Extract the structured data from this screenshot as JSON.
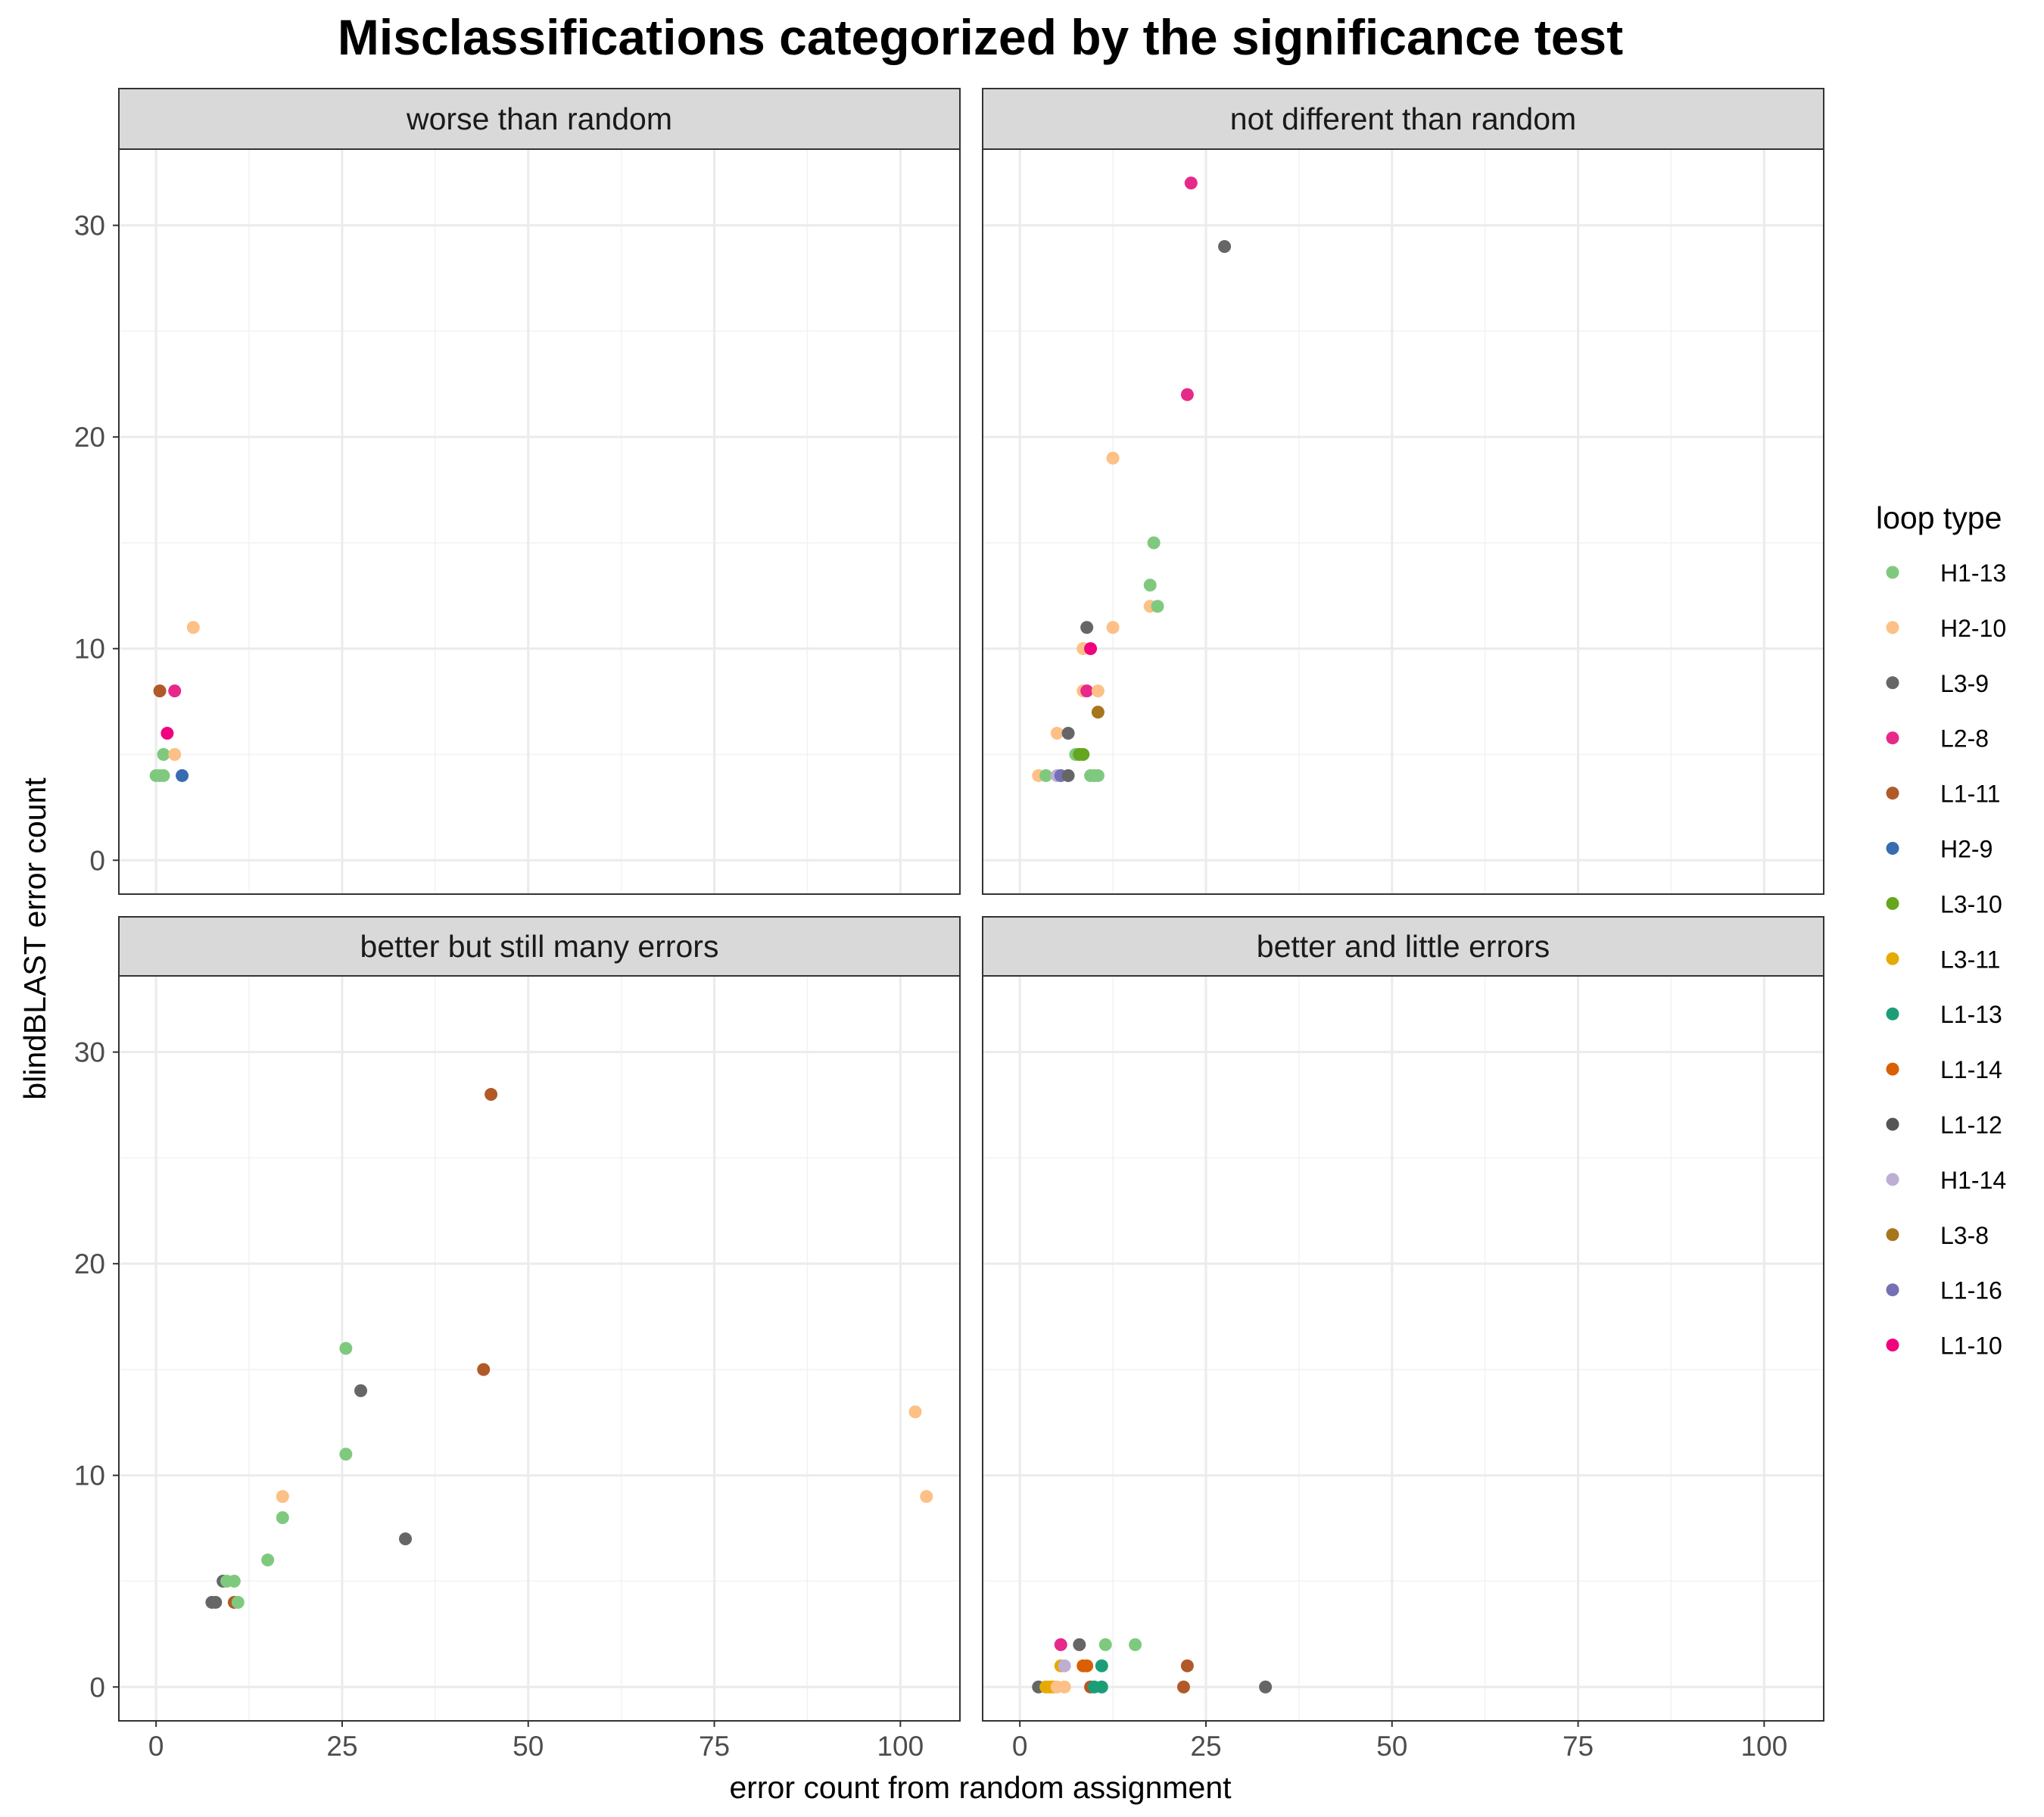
{
  "chart_data": {
    "type": "scatter",
    "title": "Misclassifications categorized by the significance test",
    "xlabel": "error count from random assignment",
    "ylabel": "blindBLAST error count",
    "xlim": [
      -5,
      108
    ],
    "ylim": [
      -1.6,
      33.6
    ],
    "xticks": [
      0,
      25,
      50,
      75,
      100
    ],
    "yticks": [
      0,
      10,
      20,
      30
    ],
    "grid": true,
    "legend": {
      "title": "loop type",
      "position": "right",
      "entries": [
        {
          "name": "H1-13",
          "color": "#7FC97F"
        },
        {
          "name": "H2-10",
          "color": "#FDC086"
        },
        {
          "name": "L3-9",
          "color": "#666666"
        },
        {
          "name": "L2-8",
          "color": "#E7298A"
        },
        {
          "name": "L1-11",
          "color": "#B15928"
        },
        {
          "name": "H2-9",
          "color": "#386CB0"
        },
        {
          "name": "L3-10",
          "color": "#66A61E"
        },
        {
          "name": "L3-11",
          "color": "#E6AB02"
        },
        {
          "name": "L1-13",
          "color": "#1B9E77"
        },
        {
          "name": "L1-14",
          "color": "#D95F02"
        },
        {
          "name": "L1-12",
          "color": "#555555"
        },
        {
          "name": "H1-14",
          "color": "#BEAED4"
        },
        {
          "name": "L3-8",
          "color": "#A6761D"
        },
        {
          "name": "L1-16",
          "color": "#7570B3"
        },
        {
          "name": "L1-10",
          "color": "#F0027F"
        }
      ]
    },
    "panels": [
      {
        "label": "worse than random",
        "points": [
          {
            "x": 5,
            "y": 11,
            "series": "H2-10"
          },
          {
            "x": 0.5,
            "y": 8,
            "series": "L1-11"
          },
          {
            "x": 2.5,
            "y": 8,
            "series": "L2-8"
          },
          {
            "x": 1.5,
            "y": 6,
            "series": "L1-10"
          },
          {
            "x": 1,
            "y": 5,
            "series": "H1-13"
          },
          {
            "x": 2.5,
            "y": 5,
            "series": "H2-10"
          },
          {
            "x": 0,
            "y": 4,
            "series": "H1-13"
          },
          {
            "x": 0.5,
            "y": 4,
            "series": "H1-13"
          },
          {
            "x": 1,
            "y": 4,
            "series": "H1-13"
          },
          {
            "x": 3.5,
            "y": 4,
            "series": "H2-9"
          }
        ]
      },
      {
        "label": "not different than random",
        "points": [
          {
            "x": 23,
            "y": 32,
            "series": "L2-8"
          },
          {
            "x": 27.5,
            "y": 29,
            "series": "L3-9"
          },
          {
            "x": 22.5,
            "y": 22,
            "series": "L2-8"
          },
          {
            "x": 12.5,
            "y": 19,
            "series": "H2-10"
          },
          {
            "x": 18,
            "y": 15,
            "series": "H1-13"
          },
          {
            "x": 17.5,
            "y": 13,
            "series": "H1-13"
          },
          {
            "x": 17.5,
            "y": 12,
            "series": "H2-10"
          },
          {
            "x": 18.5,
            "y": 12,
            "series": "H1-13"
          },
          {
            "x": 9,
            "y": 11,
            "series": "L3-9"
          },
          {
            "x": 12.5,
            "y": 11,
            "series": "H2-10"
          },
          {
            "x": 8.5,
            "y": 10,
            "series": "H2-10"
          },
          {
            "x": 9.5,
            "y": 10,
            "series": "L1-10"
          },
          {
            "x": 8.5,
            "y": 8,
            "series": "H2-10"
          },
          {
            "x": 9,
            "y": 8,
            "series": "L2-8"
          },
          {
            "x": 10.5,
            "y": 8,
            "series": "H2-10"
          },
          {
            "x": 10.5,
            "y": 7,
            "series": "L3-8"
          },
          {
            "x": 5,
            "y": 6,
            "series": "H2-10"
          },
          {
            "x": 6.5,
            "y": 6,
            "series": "L3-9"
          },
          {
            "x": 7.5,
            "y": 5,
            "series": "H1-13"
          },
          {
            "x": 8,
            "y": 5,
            "series": "L3-10"
          },
          {
            "x": 8.5,
            "y": 5,
            "series": "L3-10"
          },
          {
            "x": 2.5,
            "y": 4,
            "series": "H2-10"
          },
          {
            "x": 3.5,
            "y": 4,
            "series": "H1-13"
          },
          {
            "x": 5,
            "y": 4,
            "series": "H1-14"
          },
          {
            "x": 5.5,
            "y": 4,
            "series": "L1-16"
          },
          {
            "x": 6.5,
            "y": 4,
            "series": "L3-9"
          },
          {
            "x": 9.5,
            "y": 4,
            "series": "H1-13"
          },
          {
            "x": 10,
            "y": 4,
            "series": "H1-13"
          },
          {
            "x": 10.5,
            "y": 4,
            "series": "H1-13"
          }
        ]
      },
      {
        "label": "better but still many errors",
        "points": [
          {
            "x": 45,
            "y": 28,
            "series": "L1-11"
          },
          {
            "x": 25.5,
            "y": 16,
            "series": "H1-13"
          },
          {
            "x": 44,
            "y": 15,
            "series": "L1-11"
          },
          {
            "x": 27.5,
            "y": 14,
            "series": "L3-9"
          },
          {
            "x": 102,
            "y": 13,
            "series": "H2-10"
          },
          {
            "x": 25.5,
            "y": 11,
            "series": "H1-13"
          },
          {
            "x": 17,
            "y": 9,
            "series": "H2-10"
          },
          {
            "x": 103.5,
            "y": 9,
            "series": "H2-10"
          },
          {
            "x": 17,
            "y": 8,
            "series": "H1-13"
          },
          {
            "x": 33.5,
            "y": 7,
            "series": "L3-9"
          },
          {
            "x": 15,
            "y": 6,
            "series": "H1-13"
          },
          {
            "x": 9,
            "y": 5,
            "series": "L3-9"
          },
          {
            "x": 9.5,
            "y": 5,
            "series": "H1-13"
          },
          {
            "x": 10.5,
            "y": 5,
            "series": "H1-13"
          },
          {
            "x": 7.5,
            "y": 4,
            "series": "L3-9"
          },
          {
            "x": 8,
            "y": 4,
            "series": "L3-9"
          },
          {
            "x": 10.5,
            "y": 4,
            "series": "L1-11"
          },
          {
            "x": 11,
            "y": 4,
            "series": "H1-13"
          }
        ]
      },
      {
        "label": "better and little errors",
        "points": [
          {
            "x": 5.5,
            "y": 2,
            "series": "L2-8"
          },
          {
            "x": 8,
            "y": 2,
            "series": "L3-9"
          },
          {
            "x": 11.5,
            "y": 2,
            "series": "H1-13"
          },
          {
            "x": 15.5,
            "y": 2,
            "series": "H1-13"
          },
          {
            "x": 5.5,
            "y": 1,
            "series": "L3-11"
          },
          {
            "x": 6,
            "y": 1,
            "series": "H1-14"
          },
          {
            "x": 8.5,
            "y": 1,
            "series": "L1-14"
          },
          {
            "x": 9,
            "y": 1,
            "series": "L1-14"
          },
          {
            "x": 11,
            "y": 1,
            "series": "L1-13"
          },
          {
            "x": 22.5,
            "y": 1,
            "series": "L1-11"
          },
          {
            "x": 2.5,
            "y": 0,
            "series": "L3-9"
          },
          {
            "x": 3.5,
            "y": 0,
            "series": "L3-11"
          },
          {
            "x": 4,
            "y": 0,
            "series": "L3-11"
          },
          {
            "x": 4.5,
            "y": 0,
            "series": "L3-11"
          },
          {
            "x": 5,
            "y": 0,
            "series": "H2-10"
          },
          {
            "x": 6,
            "y": 0,
            "series": "H2-10"
          },
          {
            "x": 9.5,
            "y": 0,
            "series": "L1-11"
          },
          {
            "x": 10,
            "y": 0,
            "series": "L1-13"
          },
          {
            "x": 11,
            "y": 0,
            "series": "L1-13"
          },
          {
            "x": 22,
            "y": 0,
            "series": "L1-11"
          },
          {
            "x": 33,
            "y": 0,
            "series": "L3-9"
          }
        ]
      }
    ]
  }
}
